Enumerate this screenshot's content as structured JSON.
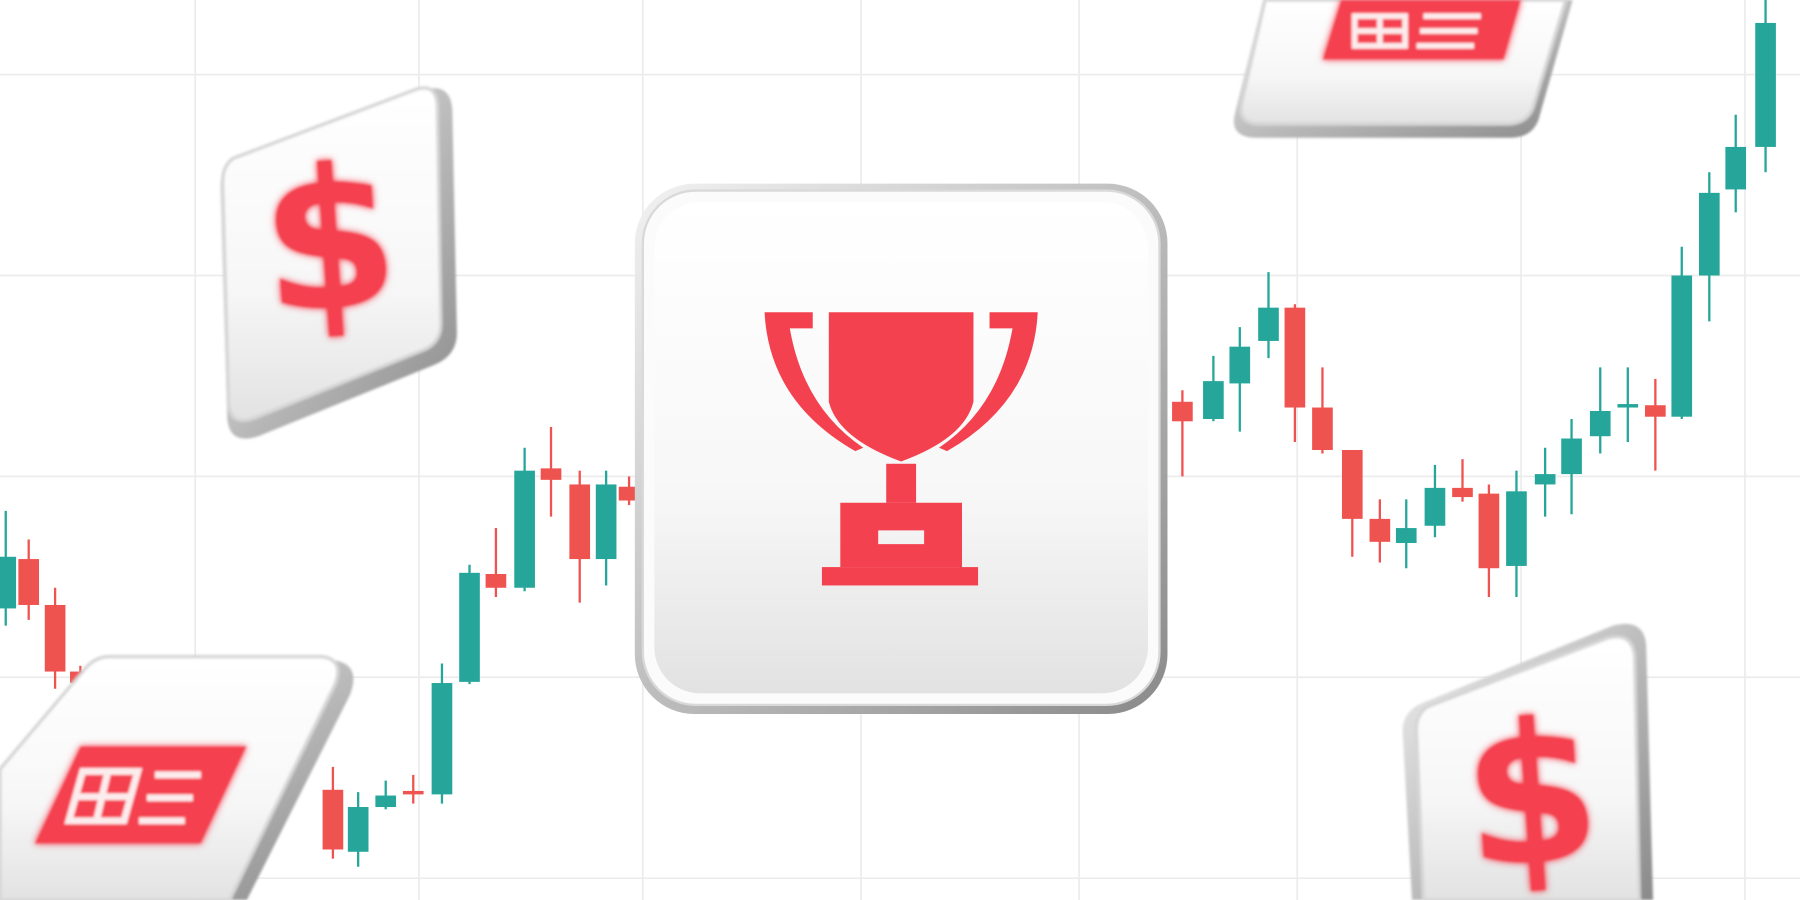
{
  "icons": [
    {
      "label": "$"
    },
    {
      "label": "$"
    }
  ]
}
